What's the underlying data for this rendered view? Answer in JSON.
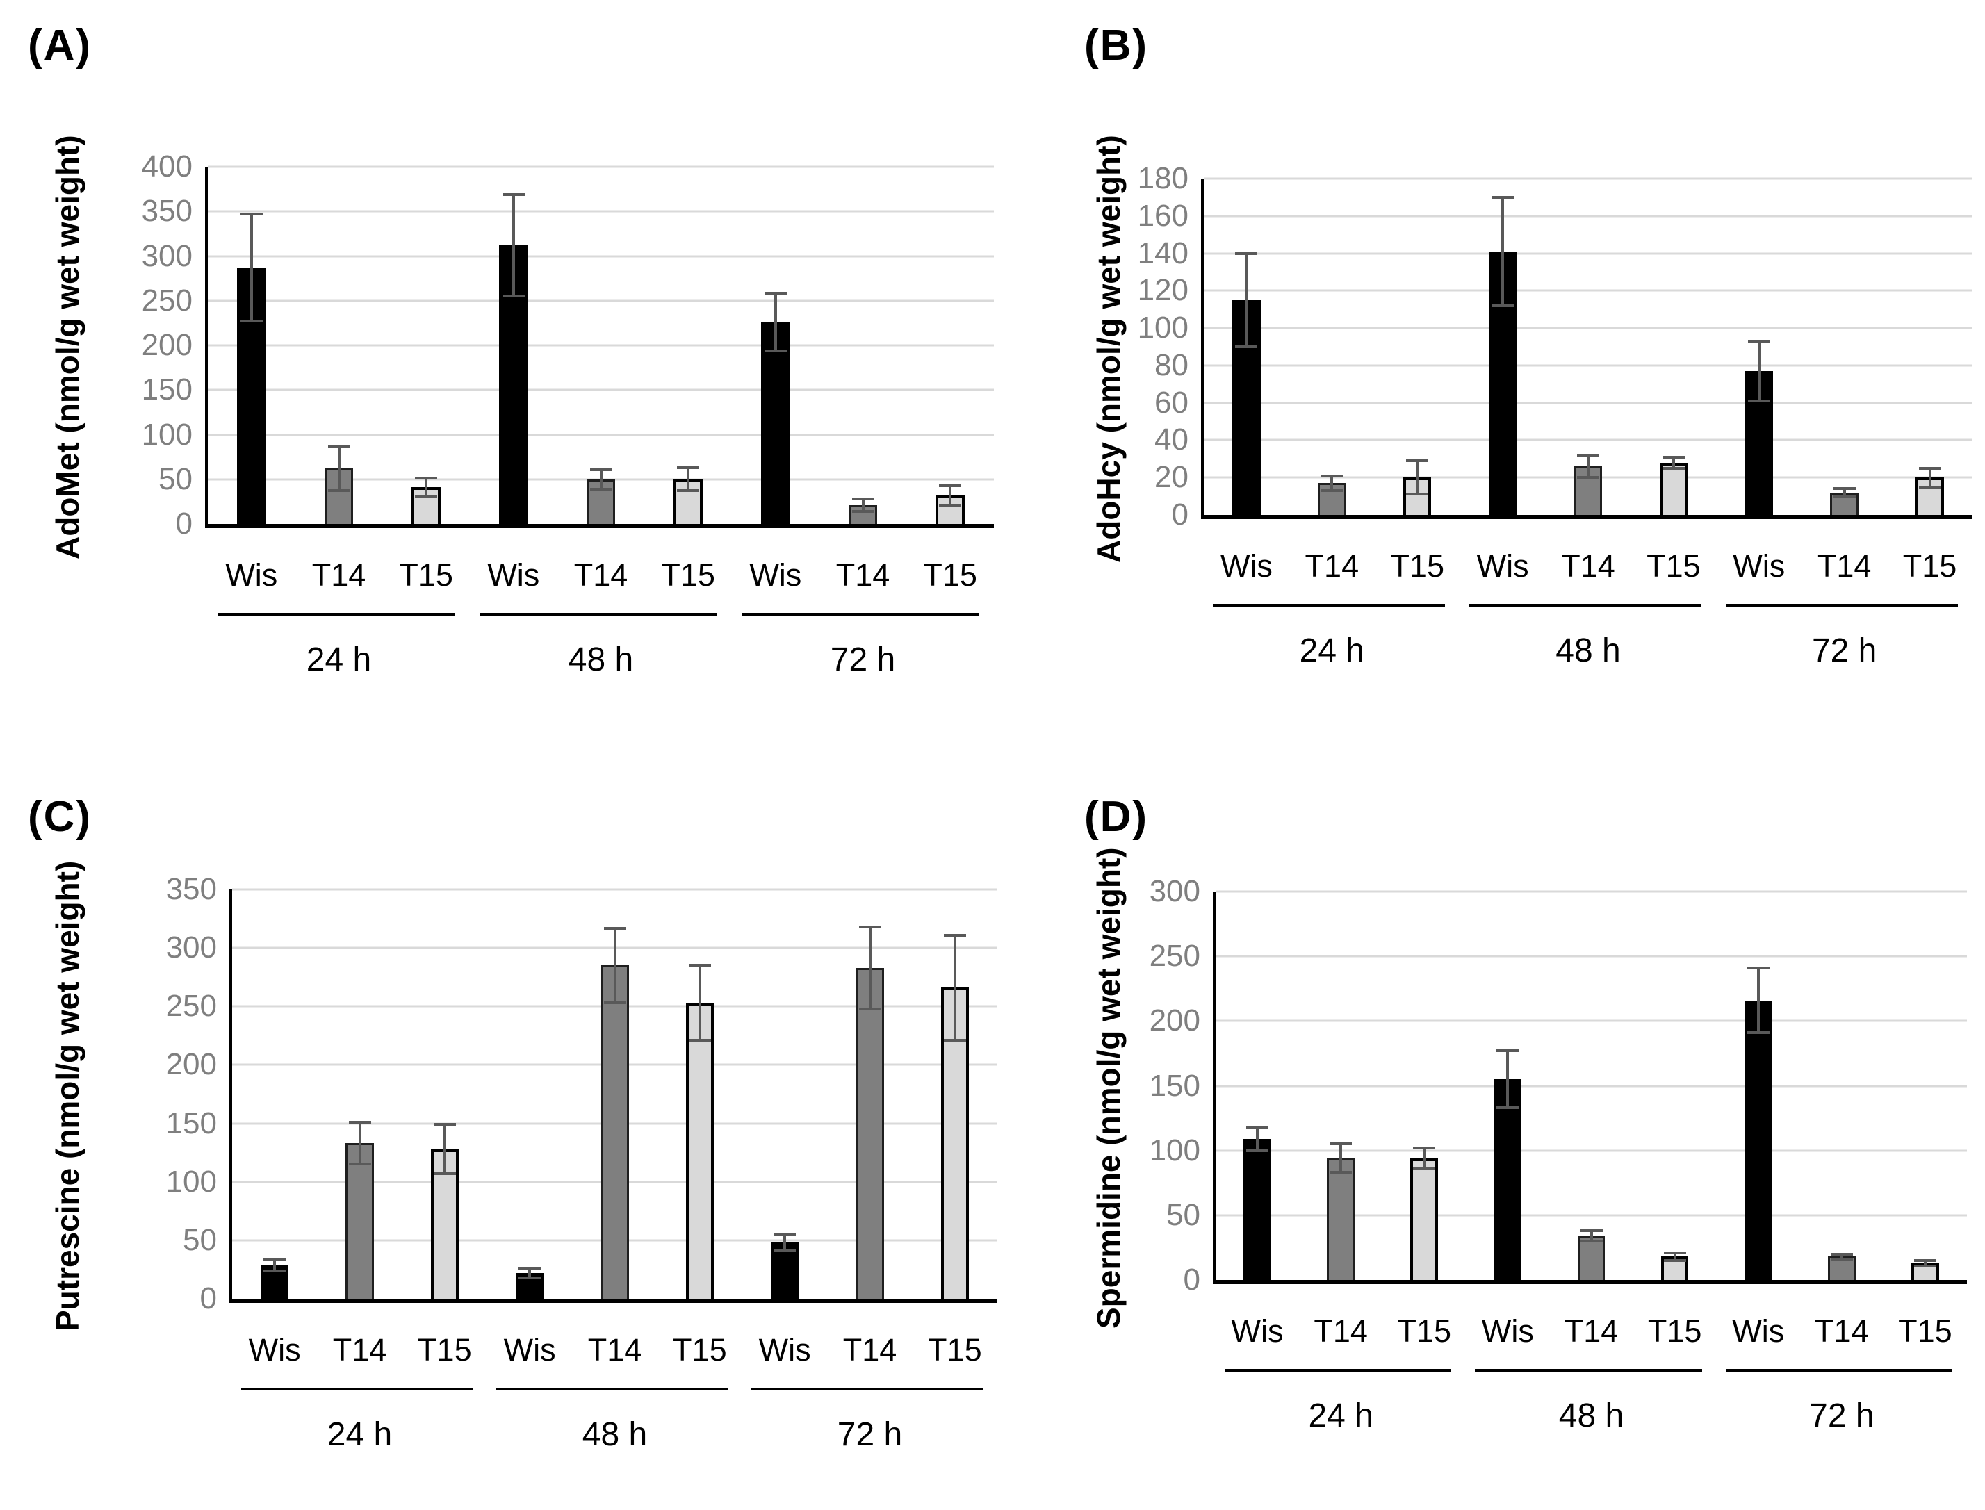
{
  "colors": {
    "Wis": "#000000",
    "T14": "#7f7f7f",
    "T15": "#d9d9d9",
    "grid": "#d9d9d9",
    "tick_text": "#7f7f7f",
    "error_bar": "#595959",
    "axis": "#000000"
  },
  "chart_data": [
    {
      "type": "bar",
      "panel": "(A)",
      "ylabel": "AdoMet (nmol/g wet weight)",
      "xlabel": "",
      "ylim": [
        0,
        400
      ],
      "ystep": 50,
      "yticks": [
        0,
        50,
        100,
        150,
        200,
        250,
        300,
        350,
        400
      ],
      "grid": true,
      "legend": "none",
      "group_labels": [
        "24 h",
        "48 h",
        "72 h"
      ],
      "bar_labels": [
        "Wis",
        "T14",
        "T15",
        "Wis",
        "T14",
        "T15",
        "Wis",
        "T14",
        "T15"
      ],
      "values": [
        287,
        62,
        41,
        312,
        50,
        50,
        226,
        21,
        32
      ],
      "errors": [
        60,
        25,
        10,
        57,
        11,
        13,
        32,
        7,
        11
      ]
    },
    {
      "type": "bar",
      "panel": "(B)",
      "ylabel": "AdoHcy (nmol/g wet weight)",
      "xlabel": "",
      "ylim": [
        0,
        180
      ],
      "ystep": 20,
      "yticks": [
        0,
        20,
        40,
        60,
        80,
        100,
        120,
        140,
        160,
        180
      ],
      "grid": true,
      "legend": "none",
      "group_labels": [
        "24 h",
        "48 h",
        "72 h"
      ],
      "bar_labels": [
        "Wis",
        "T14",
        "T15",
        "Wis",
        "T14",
        "T15",
        "Wis",
        "T14",
        "T15"
      ],
      "values": [
        115,
        17,
        20,
        141,
        26,
        28,
        77,
        12,
        20
      ],
      "errors": [
        25,
        4,
        9,
        29,
        6,
        3,
        16,
        2,
        5
      ]
    },
    {
      "type": "bar",
      "panel": "(C)",
      "ylabel": "Putrescine (nmol/g wet weight)",
      "xlabel": "",
      "ylim": [
        0,
        350
      ],
      "ystep": 50,
      "yticks": [
        0,
        50,
        100,
        150,
        200,
        250,
        300,
        350
      ],
      "grid": true,
      "legend": "none",
      "group_labels": [
        "24 h",
        "48 h",
        "72 h"
      ],
      "bar_labels": [
        "Wis",
        "T14",
        "T15",
        "Wis",
        "T14",
        "T15",
        "Wis",
        "T14",
        "T15"
      ],
      "values": [
        29,
        133,
        128,
        22,
        285,
        253,
        48,
        283,
        266
      ],
      "errors": [
        5,
        18,
        21,
        4,
        32,
        32,
        7,
        35,
        45
      ]
    },
    {
      "type": "bar",
      "panel": "(D)",
      "ylabel": "Spermidine (nmol/g wet weight)",
      "xlabel": "",
      "ylim": [
        0,
        300
      ],
      "ystep": 50,
      "yticks": [
        0,
        50,
        100,
        150,
        200,
        250,
        300
      ],
      "grid": true,
      "legend": "none",
      "group_labels": [
        "24 h",
        "48 h",
        "72 h"
      ],
      "bar_labels": [
        "Wis",
        "T14",
        "T15",
        "Wis",
        "T14",
        "T15",
        "Wis",
        "T14",
        "T15"
      ],
      "values": [
        109,
        94,
        94,
        155,
        34,
        18,
        216,
        18,
        13
      ],
      "errors": [
        9,
        11,
        8,
        22,
        4,
        3,
        25,
        2,
        2
      ]
    }
  ]
}
